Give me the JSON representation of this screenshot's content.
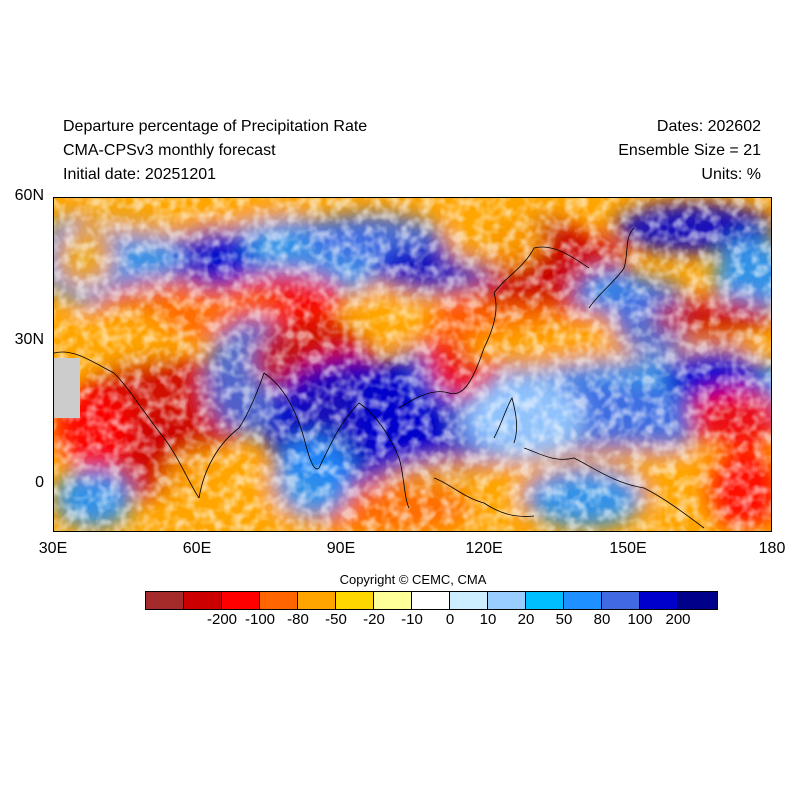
{
  "header": {
    "title": "Departure percentage of Precipitation Rate",
    "model": "CMA-CPSv3 monthly forecast",
    "initial_date": "Initial date: 20251201",
    "dates": "Dates: 202602",
    "ensemble": "Ensemble Size = 21",
    "units": "Units: %"
  },
  "axes": {
    "lat_labels": [
      "60N",
      "30N",
      "0"
    ],
    "lon_labels": [
      "30E",
      "60E",
      "90E",
      "120E",
      "150E",
      "180"
    ]
  },
  "copyright": "Copyright © CEMC, CMA",
  "colorbar": {
    "colors": [
      "#a52a2a",
      "#cc0000",
      "#ff0000",
      "#ff6600",
      "#ffa500",
      "#ffd700",
      "#ffff99",
      "#ffffff",
      "#cceeff",
      "#99ccff",
      "#00bfff",
      "#1e90ff",
      "#4169e1",
      "#0000cd",
      "#00008b"
    ],
    "labels": [
      "-200",
      "-100",
      "-80",
      "-50",
      "-20",
      "-10",
      "0",
      "10",
      "20",
      "50",
      "80",
      "100",
      "200"
    ]
  },
  "map_extent": {
    "lon_min": 30,
    "lon_max": 180,
    "lat_min": -10,
    "lat_max": 60
  }
}
